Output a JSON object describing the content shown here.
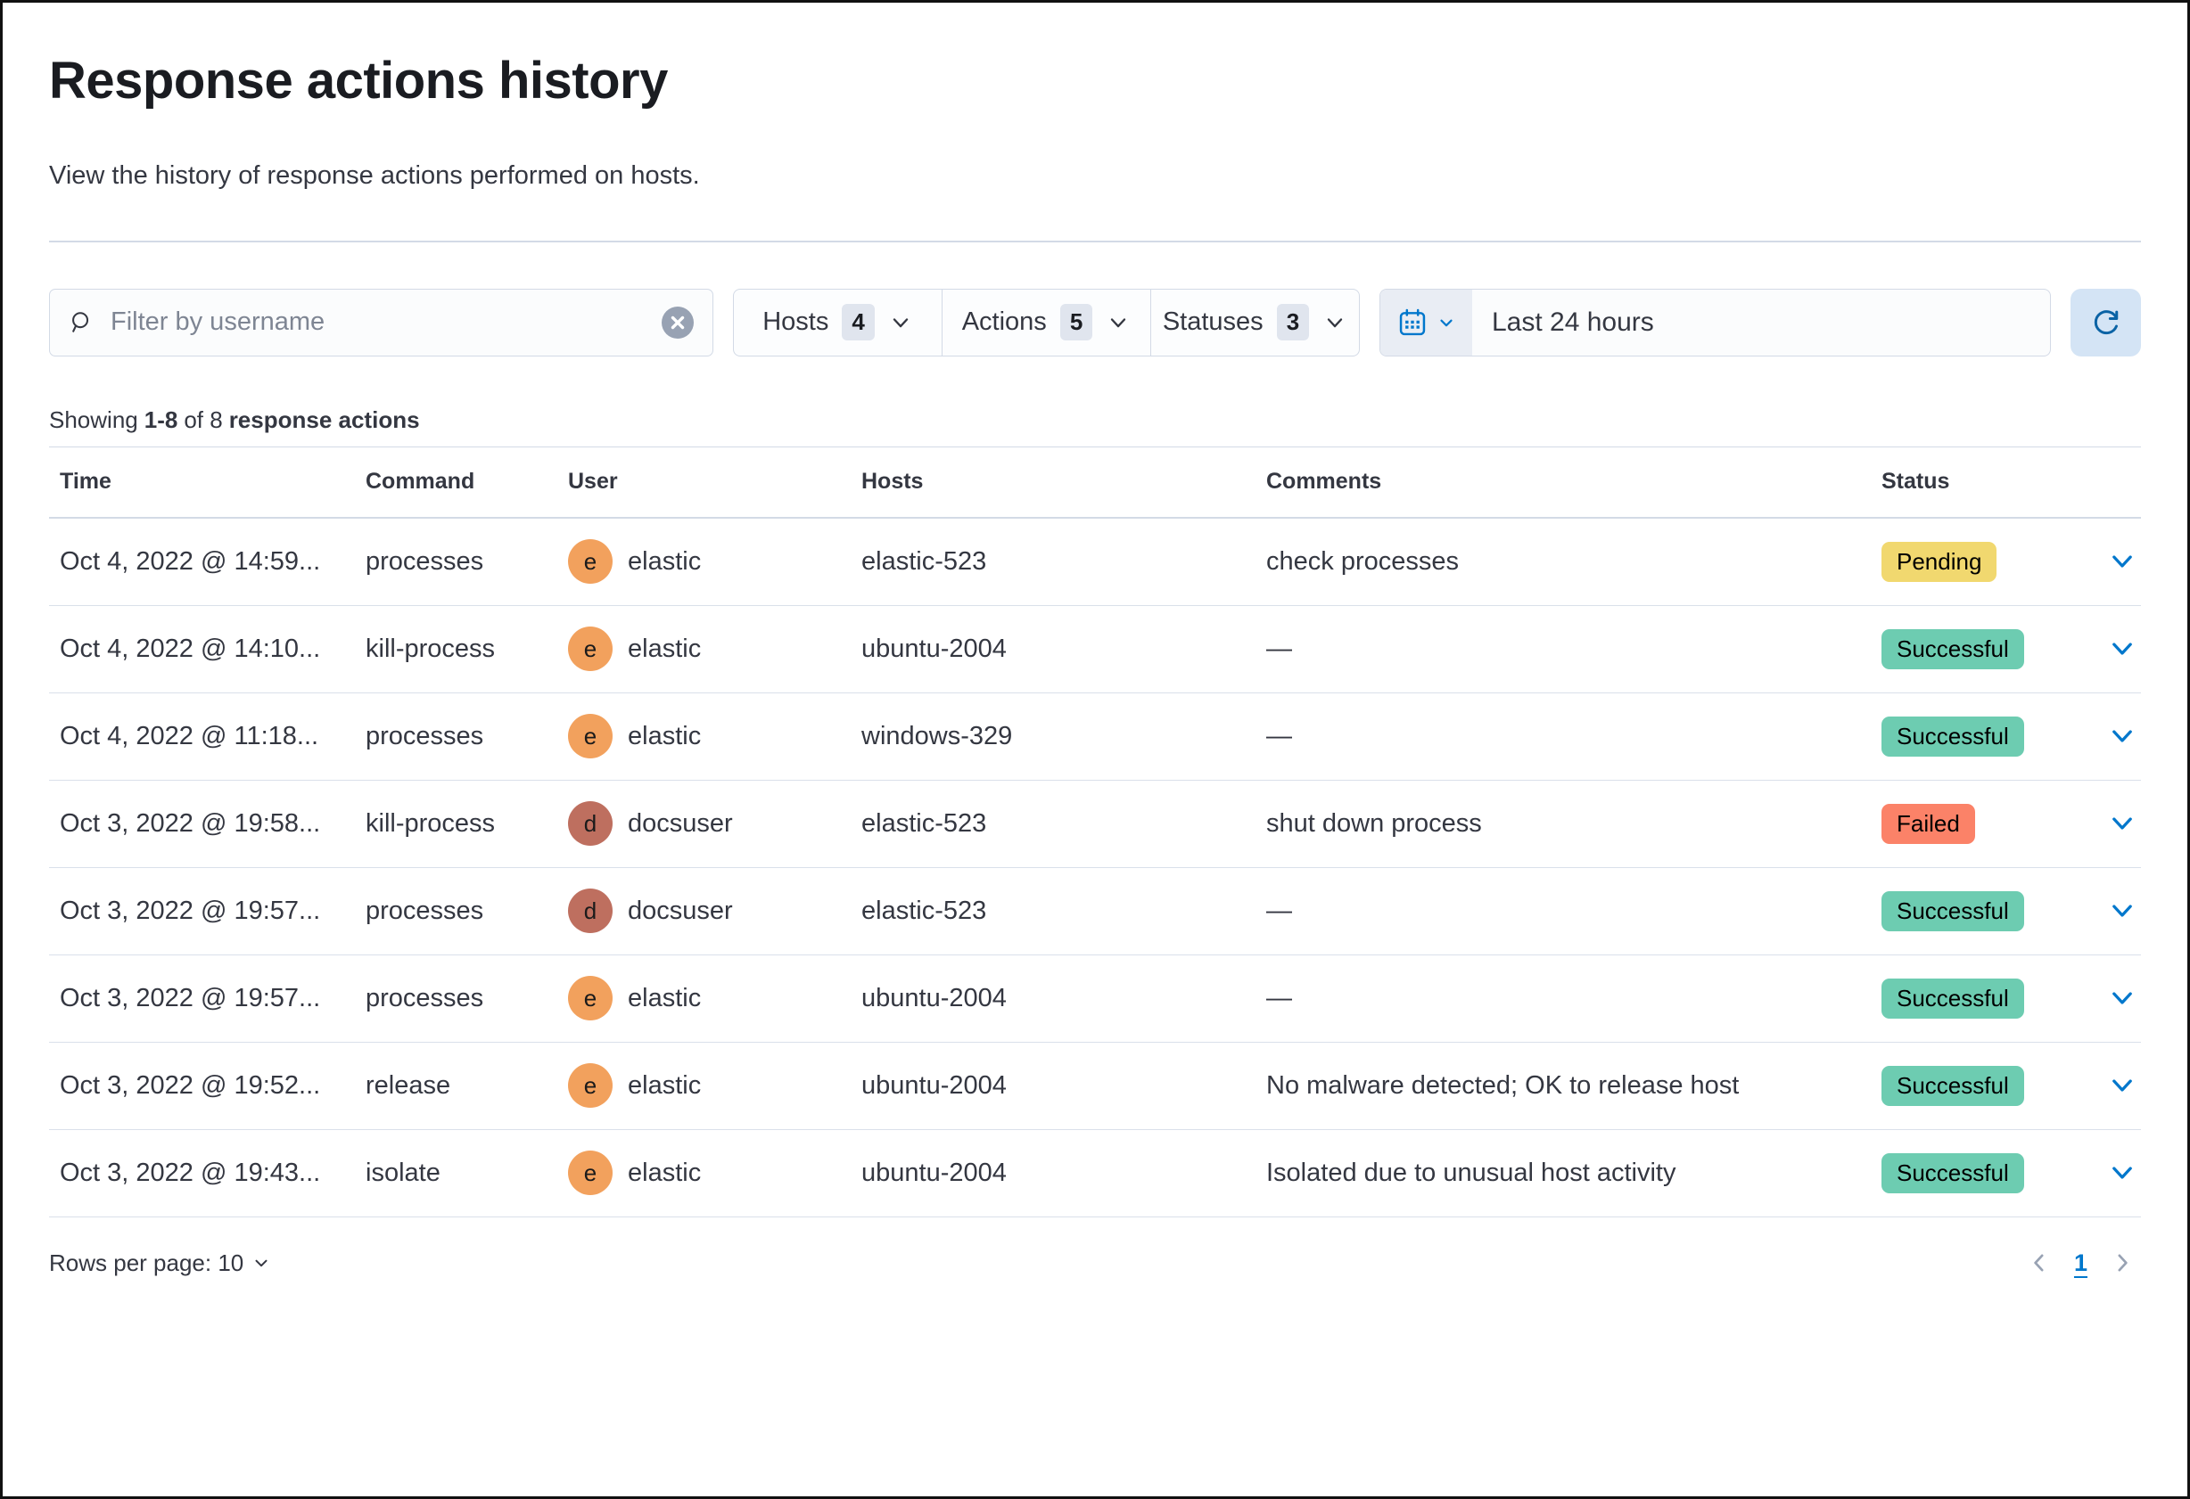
{
  "page": {
    "title": "Response actions history",
    "subtitle": "View the history of response actions performed on hosts."
  },
  "filters": {
    "search": {
      "placeholder": "Filter by username",
      "value": ""
    },
    "dropdowns": [
      {
        "label": "Hosts",
        "count": "4"
      },
      {
        "label": "Actions",
        "count": "5"
      },
      {
        "label": "Statuses",
        "count": "3"
      }
    ],
    "date_range": "Last 24 hours"
  },
  "summary": {
    "showing": "Showing",
    "range": "1-8",
    "of": "of 8",
    "label": "response actions"
  },
  "table": {
    "columns": [
      "Time",
      "Command",
      "User",
      "Hosts",
      "Comments",
      "Status"
    ],
    "rows": [
      {
        "time": "Oct 4, 2022 @ 14:59...",
        "command": "processes",
        "user": "elastic",
        "user_initial": "e",
        "host": "elastic-523",
        "comment": "check processes",
        "status": "Pending"
      },
      {
        "time": "Oct 4, 2022 @ 14:10...",
        "command": "kill-process",
        "user": "elastic",
        "user_initial": "e",
        "host": "ubuntu-2004",
        "comment": "—",
        "status": "Successful"
      },
      {
        "time": "Oct 4, 2022 @ 11:18...",
        "command": "processes",
        "user": "elastic",
        "user_initial": "e",
        "host": "windows-329",
        "comment": "—",
        "status": "Successful"
      },
      {
        "time": "Oct 3, 2022 @ 19:58...",
        "command": "kill-process",
        "user": "docsuser",
        "user_initial": "d",
        "host": "elastic-523",
        "comment": "shut down process",
        "status": "Failed"
      },
      {
        "time": "Oct 3, 2022 @ 19:57...",
        "command": "processes",
        "user": "docsuser",
        "user_initial": "d",
        "host": "elastic-523",
        "comment": "—",
        "status": "Successful"
      },
      {
        "time": "Oct 3, 2022 @ 19:57...",
        "command": "processes",
        "user": "elastic",
        "user_initial": "e",
        "host": "ubuntu-2004",
        "comment": "—",
        "status": "Successful"
      },
      {
        "time": "Oct 3, 2022 @ 19:52...",
        "command": "release",
        "user": "elastic",
        "user_initial": "e",
        "host": "ubuntu-2004",
        "comment": "No malware detected; OK to release host",
        "status": "Successful"
      },
      {
        "time": "Oct 3, 2022 @ 19:43...",
        "command": "isolate",
        "user": "elastic",
        "user_initial": "e",
        "host": "ubuntu-2004",
        "comment": "Isolated due to unusual host activity",
        "status": "Successful"
      }
    ]
  },
  "footer": {
    "rows_per_page": "Rows per page: 10",
    "page_number": "1"
  },
  "colors": {
    "primary": "#0077CC",
    "refresh_icon": "#0B63A5",
    "status": {
      "Pending": "#F1D86F",
      "Successful": "#6DCCB1",
      "Failed": "#FB8268"
    },
    "avatars": {
      "elastic": "#F2A15D",
      "docsuser": "#BE6F5F"
    }
  },
  "icons": {
    "search": "magnifying-glass",
    "clear": "cross-in-circle",
    "calendar": "calendar-grid",
    "refresh": "circular-arrow",
    "chevron": "chevron-down"
  }
}
